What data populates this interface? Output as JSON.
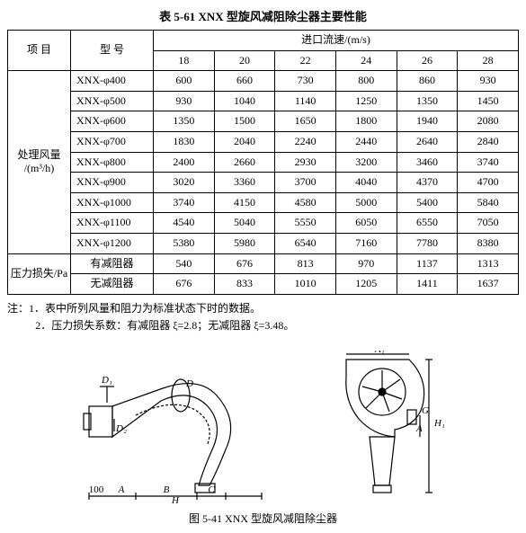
{
  "table": {
    "caption": "表 5-61  XNX 型旋风减阻除尘器主要性能",
    "header_item": "项  目",
    "header_model": "型  号",
    "header_velocity": "进口流速/(m/s)",
    "velocity_cols": [
      "18",
      "20",
      "22",
      "24",
      "26",
      "28"
    ],
    "group_flow": "处理风量\n/(m³/h)",
    "models": [
      "XNX-φ400",
      "XNX-φ500",
      "XNX-φ600",
      "XNX-φ700",
      "XNX-φ800",
      "XNX-φ900",
      "XNX-φ1000",
      "XNX-φ1100",
      "XNX-φ1200"
    ],
    "rows": [
      [
        "600",
        "660",
        "730",
        "800",
        "860",
        "930"
      ],
      [
        "930",
        "1040",
        "1140",
        "1250",
        "1350",
        "1450"
      ],
      [
        "1350",
        "1500",
        "1650",
        "1800",
        "1940",
        "2080"
      ],
      [
        "1830",
        "2040",
        "2240",
        "2440",
        "2640",
        "2840"
      ],
      [
        "2400",
        "2660",
        "2930",
        "3200",
        "3460",
        "3740"
      ],
      [
        "3020",
        "3360",
        "3700",
        "4040",
        "4370",
        "4700"
      ],
      [
        "3740",
        "4150",
        "4580",
        "5000",
        "5400",
        "5840"
      ],
      [
        "4540",
        "5040",
        "5550",
        "6050",
        "6550",
        "7050"
      ],
      [
        "5380",
        "5980",
        "6540",
        "7160",
        "7780",
        "8380"
      ]
    ],
    "group_pressure": "压力损失/Pa",
    "pressure_models": [
      "有减阻器",
      "无减阻器"
    ],
    "pressure_rows": [
      [
        "540",
        "676",
        "813",
        "970",
        "1137",
        "1313"
      ],
      [
        "676",
        "833",
        "1010",
        "1205",
        "1411",
        "1637"
      ]
    ]
  },
  "notes": {
    "label": "注：",
    "l1": "1．表中所列风量和阻力为标准状态下时的数据。",
    "l2": "2．压力损失系数：有减阻器 ξ=2.8；无减阻器 ξ=3.48。"
  },
  "figure": {
    "labels": {
      "D": "D",
      "D1": "D₁",
      "D2": "D₂",
      "A100": "100",
      "A": "A",
      "B": "B",
      "C": "C",
      "H": "H",
      "H1": "H₁",
      "G": "G",
      "a": "A",
      "a1": "A₁"
    },
    "caption": "图 5-41  XNX 型旋风减阻除尘器"
  },
  "style": {
    "stroke": "#000000",
    "fill": "#ffffff",
    "bg": "#ffffff"
  }
}
